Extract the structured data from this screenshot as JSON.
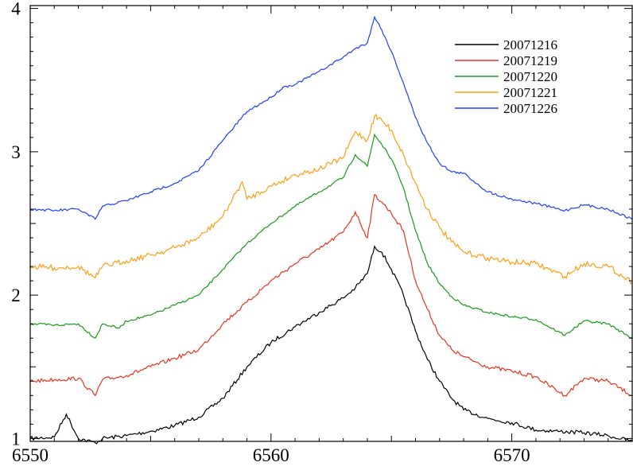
{
  "chart_data": {
    "type": "line",
    "title": "",
    "xlabel": "",
    "ylabel": "",
    "xlim": [
      6550,
      6575
    ],
    "ylim": [
      0.98,
      4.02
    ],
    "x_ticks": [
      6550,
      6560,
      6570
    ],
    "y_ticks": [
      1,
      2,
      3,
      4
    ],
    "legend_position": "top-right",
    "grid": false,
    "series": [
      {
        "name": "20071216",
        "color": "#000000",
        "x": [
          6550,
          6551,
          6551.5,
          6552,
          6552.7,
          6553,
          6554,
          6555,
          6556,
          6557,
          6558,
          6559,
          6560,
          6561,
          6562,
          6563,
          6563.5,
          6564,
          6564.3,
          6564.6,
          6565,
          6565.5,
          6566,
          6566.5,
          6567,
          6567.5,
          6568,
          6569,
          6570,
          6571,
          6572,
          6573,
          6574,
          6575
        ],
        "values": [
          1.0,
          1.01,
          1.17,
          1.0,
          0.97,
          1.0,
          1.02,
          1.05,
          1.09,
          1.15,
          1.28,
          1.5,
          1.67,
          1.78,
          1.88,
          1.98,
          2.05,
          2.15,
          2.34,
          2.3,
          2.18,
          2.0,
          1.75,
          1.55,
          1.4,
          1.28,
          1.2,
          1.14,
          1.11,
          1.06,
          1.05,
          1.04,
          1.02,
          0.98
        ]
      },
      {
        "name": "20071219",
        "color": "#e8341c",
        "x": [
          6550,
          6551,
          6552,
          6552.7,
          6553,
          6554,
          6555,
          6556,
          6557,
          6558,
          6559,
          6560,
          6561,
          6562,
          6563,
          6563.5,
          6564,
          6564.3,
          6564.6,
          6565,
          6565.5,
          6566,
          6566.5,
          6567,
          6567.5,
          6568,
          6569,
          6570,
          6571,
          6572.2,
          6573,
          6574,
          6575
        ],
        "values": [
          1.4,
          1.41,
          1.42,
          1.3,
          1.41,
          1.44,
          1.5,
          1.56,
          1.62,
          1.8,
          1.95,
          2.1,
          2.22,
          2.32,
          2.44,
          2.58,
          2.4,
          2.7,
          2.65,
          2.57,
          2.45,
          2.1,
          1.9,
          1.72,
          1.62,
          1.57,
          1.5,
          1.47,
          1.43,
          1.3,
          1.42,
          1.4,
          1.3
        ]
      },
      {
        "name": "20071220",
        "color": "#1a9a1a",
        "x": [
          6550,
          6551,
          6552,
          6552.7,
          6553,
          6553.7,
          6554,
          6555,
          6556,
          6557,
          6558,
          6559,
          6560,
          6561,
          6562,
          6563,
          6563.5,
          6564,
          6564.3,
          6564.6,
          6565,
          6565.5,
          6566,
          6566.5,
          6567,
          6567.5,
          6568,
          6569,
          6570,
          6571,
          6572.2,
          6573,
          6574,
          6575
        ],
        "values": [
          1.8,
          1.79,
          1.8,
          1.7,
          1.8,
          1.77,
          1.82,
          1.86,
          1.93,
          2.0,
          2.18,
          2.36,
          2.5,
          2.62,
          2.72,
          2.82,
          2.98,
          2.9,
          3.12,
          3.05,
          2.95,
          2.75,
          2.45,
          2.22,
          2.08,
          1.99,
          1.93,
          1.88,
          1.85,
          1.83,
          1.72,
          1.82,
          1.8,
          1.7
        ]
      },
      {
        "name": "20071221",
        "color": "#ff9d14",
        "x": [
          6550,
          6551,
          6552,
          6552.7,
          6553,
          6554,
          6555,
          6556,
          6557,
          6558,
          6558.8,
          6559,
          6560,
          6561,
          6562,
          6563,
          6563.5,
          6564,
          6564.3,
          6564.6,
          6565,
          6565.5,
          6566,
          6566.5,
          6567,
          6567.5,
          6568,
          6569,
          6570,
          6571,
          6572.2,
          6573,
          6574,
          6575
        ],
        "values": [
          2.2,
          2.19,
          2.2,
          2.12,
          2.2,
          2.24,
          2.28,
          2.33,
          2.4,
          2.55,
          2.79,
          2.67,
          2.76,
          2.84,
          2.88,
          2.96,
          3.14,
          3.08,
          3.25,
          3.22,
          3.15,
          2.98,
          2.78,
          2.6,
          2.47,
          2.37,
          2.3,
          2.26,
          2.23,
          2.22,
          2.13,
          2.22,
          2.2,
          2.09
        ]
      },
      {
        "name": "20071226",
        "color": "#1f3fff",
        "x": [
          6550,
          6551,
          6552,
          6552.7,
          6553,
          6554,
          6555,
          6556,
          6557,
          6558,
          6559,
          6560,
          6560.5,
          6561,
          6562,
          6563,
          6563.5,
          6564,
          6564.3,
          6564.6,
          6565,
          6565.5,
          6566,
          6566.5,
          6567,
          6567.5,
          6568,
          6569,
          6570,
          6571,
          6572.2,
          6573,
          6574,
          6575
        ],
        "values": [
          2.6,
          2.59,
          2.6,
          2.53,
          2.62,
          2.66,
          2.72,
          2.78,
          2.87,
          3.08,
          3.28,
          3.38,
          3.45,
          3.47,
          3.56,
          3.66,
          3.72,
          3.76,
          3.94,
          3.85,
          3.7,
          3.48,
          3.24,
          3.06,
          2.92,
          2.86,
          2.85,
          2.72,
          2.67,
          2.64,
          2.59,
          2.63,
          2.6,
          2.53
        ]
      }
    ]
  }
}
